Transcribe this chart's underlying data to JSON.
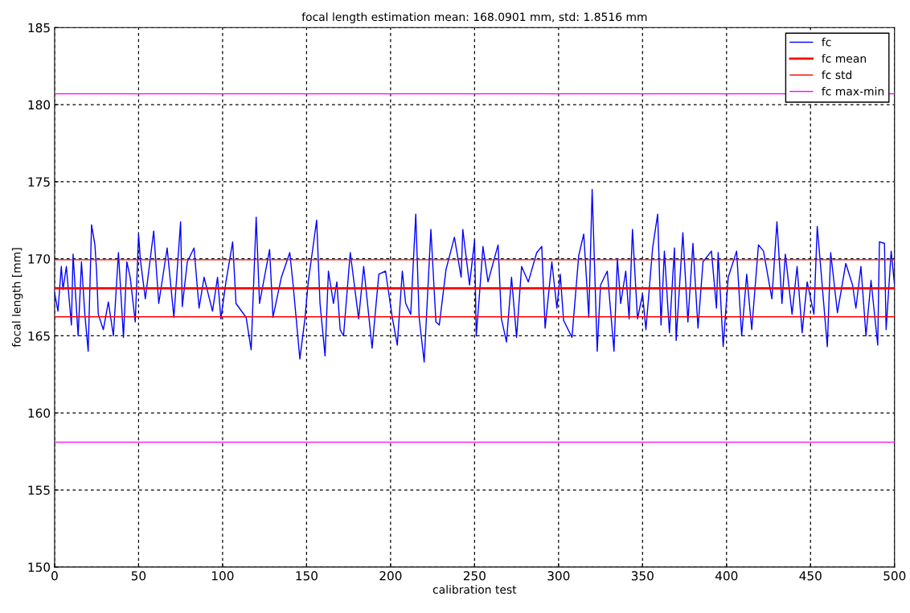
{
  "chart_data": {
    "type": "line",
    "title": "focal length estimation mean: 168.0901 mm, std: 1.8516 mm",
    "xlabel": "calibration test",
    "ylabel": "focal length [mm]",
    "series": [
      {
        "name": "fc",
        "color": "#0000ff",
        "x": [
          0,
          2,
          4,
          5,
          7,
          10,
          11,
          14,
          16,
          18,
          20,
          22,
          24,
          25,
          26,
          29,
          32,
          35,
          38,
          41,
          43,
          45,
          48,
          50,
          51,
          54,
          59,
          62,
          67,
          71,
          75,
          76,
          79,
          83,
          86,
          89,
          94,
          97,
          99,
          102,
          106,
          108,
          114,
          117,
          120,
          122,
          128,
          130,
          135,
          140,
          142,
          146,
          149,
          151,
          156,
          158,
          161,
          163,
          166,
          168,
          170,
          172,
          176,
          181,
          184,
          189,
          193,
          197,
          201,
          204,
          207,
          209,
          212,
          215,
          217,
          220,
          224,
          227,
          229,
          233,
          238,
          242,
          243,
          247,
          250,
          251,
          253,
          255,
          258,
          264,
          266,
          269,
          272,
          275,
          278,
          282,
          287,
          290,
          292,
          296,
          299,
          301,
          303,
          308,
          312,
          315,
          318,
          320,
          323,
          325,
          329,
          333,
          335,
          337,
          340,
          342,
          344,
          347,
          350,
          352,
          356,
          359,
          361,
          363,
          366,
          369,
          370,
          374,
          377,
          380,
          383,
          386,
          391,
          394,
          395,
          398,
          401,
          406,
          409,
          412,
          415,
          419,
          422,
          427,
          430,
          433,
          435,
          439,
          442,
          445,
          448,
          452,
          454,
          460,
          462,
          466,
          471,
          475,
          477,
          480,
          483,
          486,
          490,
          491,
          494,
          495,
          498,
          500
        ],
        "values": [
          167.8,
          166.6,
          169.5,
          168.0,
          169.5,
          165.7,
          170.3,
          165.0,
          169.8,
          166.4,
          164.0,
          172.2,
          170.9,
          169.2,
          166.4,
          165.4,
          167.2,
          165.0,
          170.4,
          164.9,
          169.8,
          168.8,
          165.9,
          171.6,
          170.0,
          167.4,
          171.8,
          167.1,
          170.7,
          166.2,
          172.4,
          166.9,
          169.8,
          170.7,
          166.8,
          168.8,
          166.6,
          168.8,
          166.1,
          168.5,
          171.1,
          167.1,
          166.2,
          164.1,
          172.7,
          167.1,
          170.6,
          166.2,
          168.8,
          170.4,
          168.3,
          163.5,
          166.1,
          168.5,
          172.5,
          167.1,
          163.7,
          169.2,
          167.1,
          168.5,
          165.4,
          165.0,
          170.4,
          166.1,
          169.5,
          164.2,
          169.0,
          169.2,
          166.2,
          164.4,
          169.2,
          167.1,
          166.4,
          172.9,
          166.2,
          163.3,
          171.9,
          165.9,
          165.7,
          169.3,
          171.4,
          168.8,
          171.9,
          168.3,
          171.2,
          165.0,
          167.8,
          170.8,
          168.5,
          170.9,
          166.1,
          164.6,
          168.8,
          164.9,
          169.5,
          168.5,
          170.4,
          170.8,
          165.5,
          169.8,
          166.8,
          169.0,
          166.0,
          164.9,
          170.2,
          171.6,
          166.2,
          174.5,
          164.0,
          168.3,
          169.2,
          164.0,
          170.0,
          167.1,
          169.2,
          166.1,
          171.9,
          166.1,
          167.7,
          165.4,
          170.7,
          172.9,
          165.7,
          170.5,
          165.2,
          170.7,
          164.7,
          171.7,
          165.9,
          171.0,
          165.5,
          169.8,
          170.5,
          166.8,
          170.4,
          164.3,
          168.8,
          170.5,
          165.0,
          169.0,
          165.4,
          170.9,
          170.5,
          167.4,
          172.4,
          167.1,
          170.3,
          166.4,
          169.5,
          165.2,
          168.5,
          166.4,
          172.1,
          164.3,
          170.4,
          166.5,
          169.7,
          168.3,
          166.8,
          169.5,
          165.0,
          168.6,
          164.4,
          171.1,
          171.0,
          165.4,
          170.5,
          168.3
        ]
      }
    ],
    "ref_lines": [
      {
        "axis": "y",
        "value": 168.0901,
        "label": "fc mean",
        "color": "#ff0000"
      },
      {
        "axis": "y",
        "value": 169.94,
        "label": "fc std",
        "color": "#ff0000"
      },
      {
        "axis": "y",
        "value": 166.24,
        "color": "#ff0000"
      },
      {
        "axis": "y",
        "value": 180.7,
        "label": "fc max-min",
        "color": "#ff00ff"
      },
      {
        "axis": "y",
        "value": 158.1,
        "color": "#ff00ff"
      }
    ],
    "xlim": [
      0,
      500
    ],
    "xticks": [
      0,
      50,
      100,
      150,
      200,
      250,
      300,
      350,
      400,
      450,
      500
    ],
    "ylim": [
      150,
      185
    ],
    "yticks": [
      150,
      155,
      160,
      165,
      170,
      175,
      180,
      185
    ],
    "grid": true,
    "legend": "top right"
  }
}
